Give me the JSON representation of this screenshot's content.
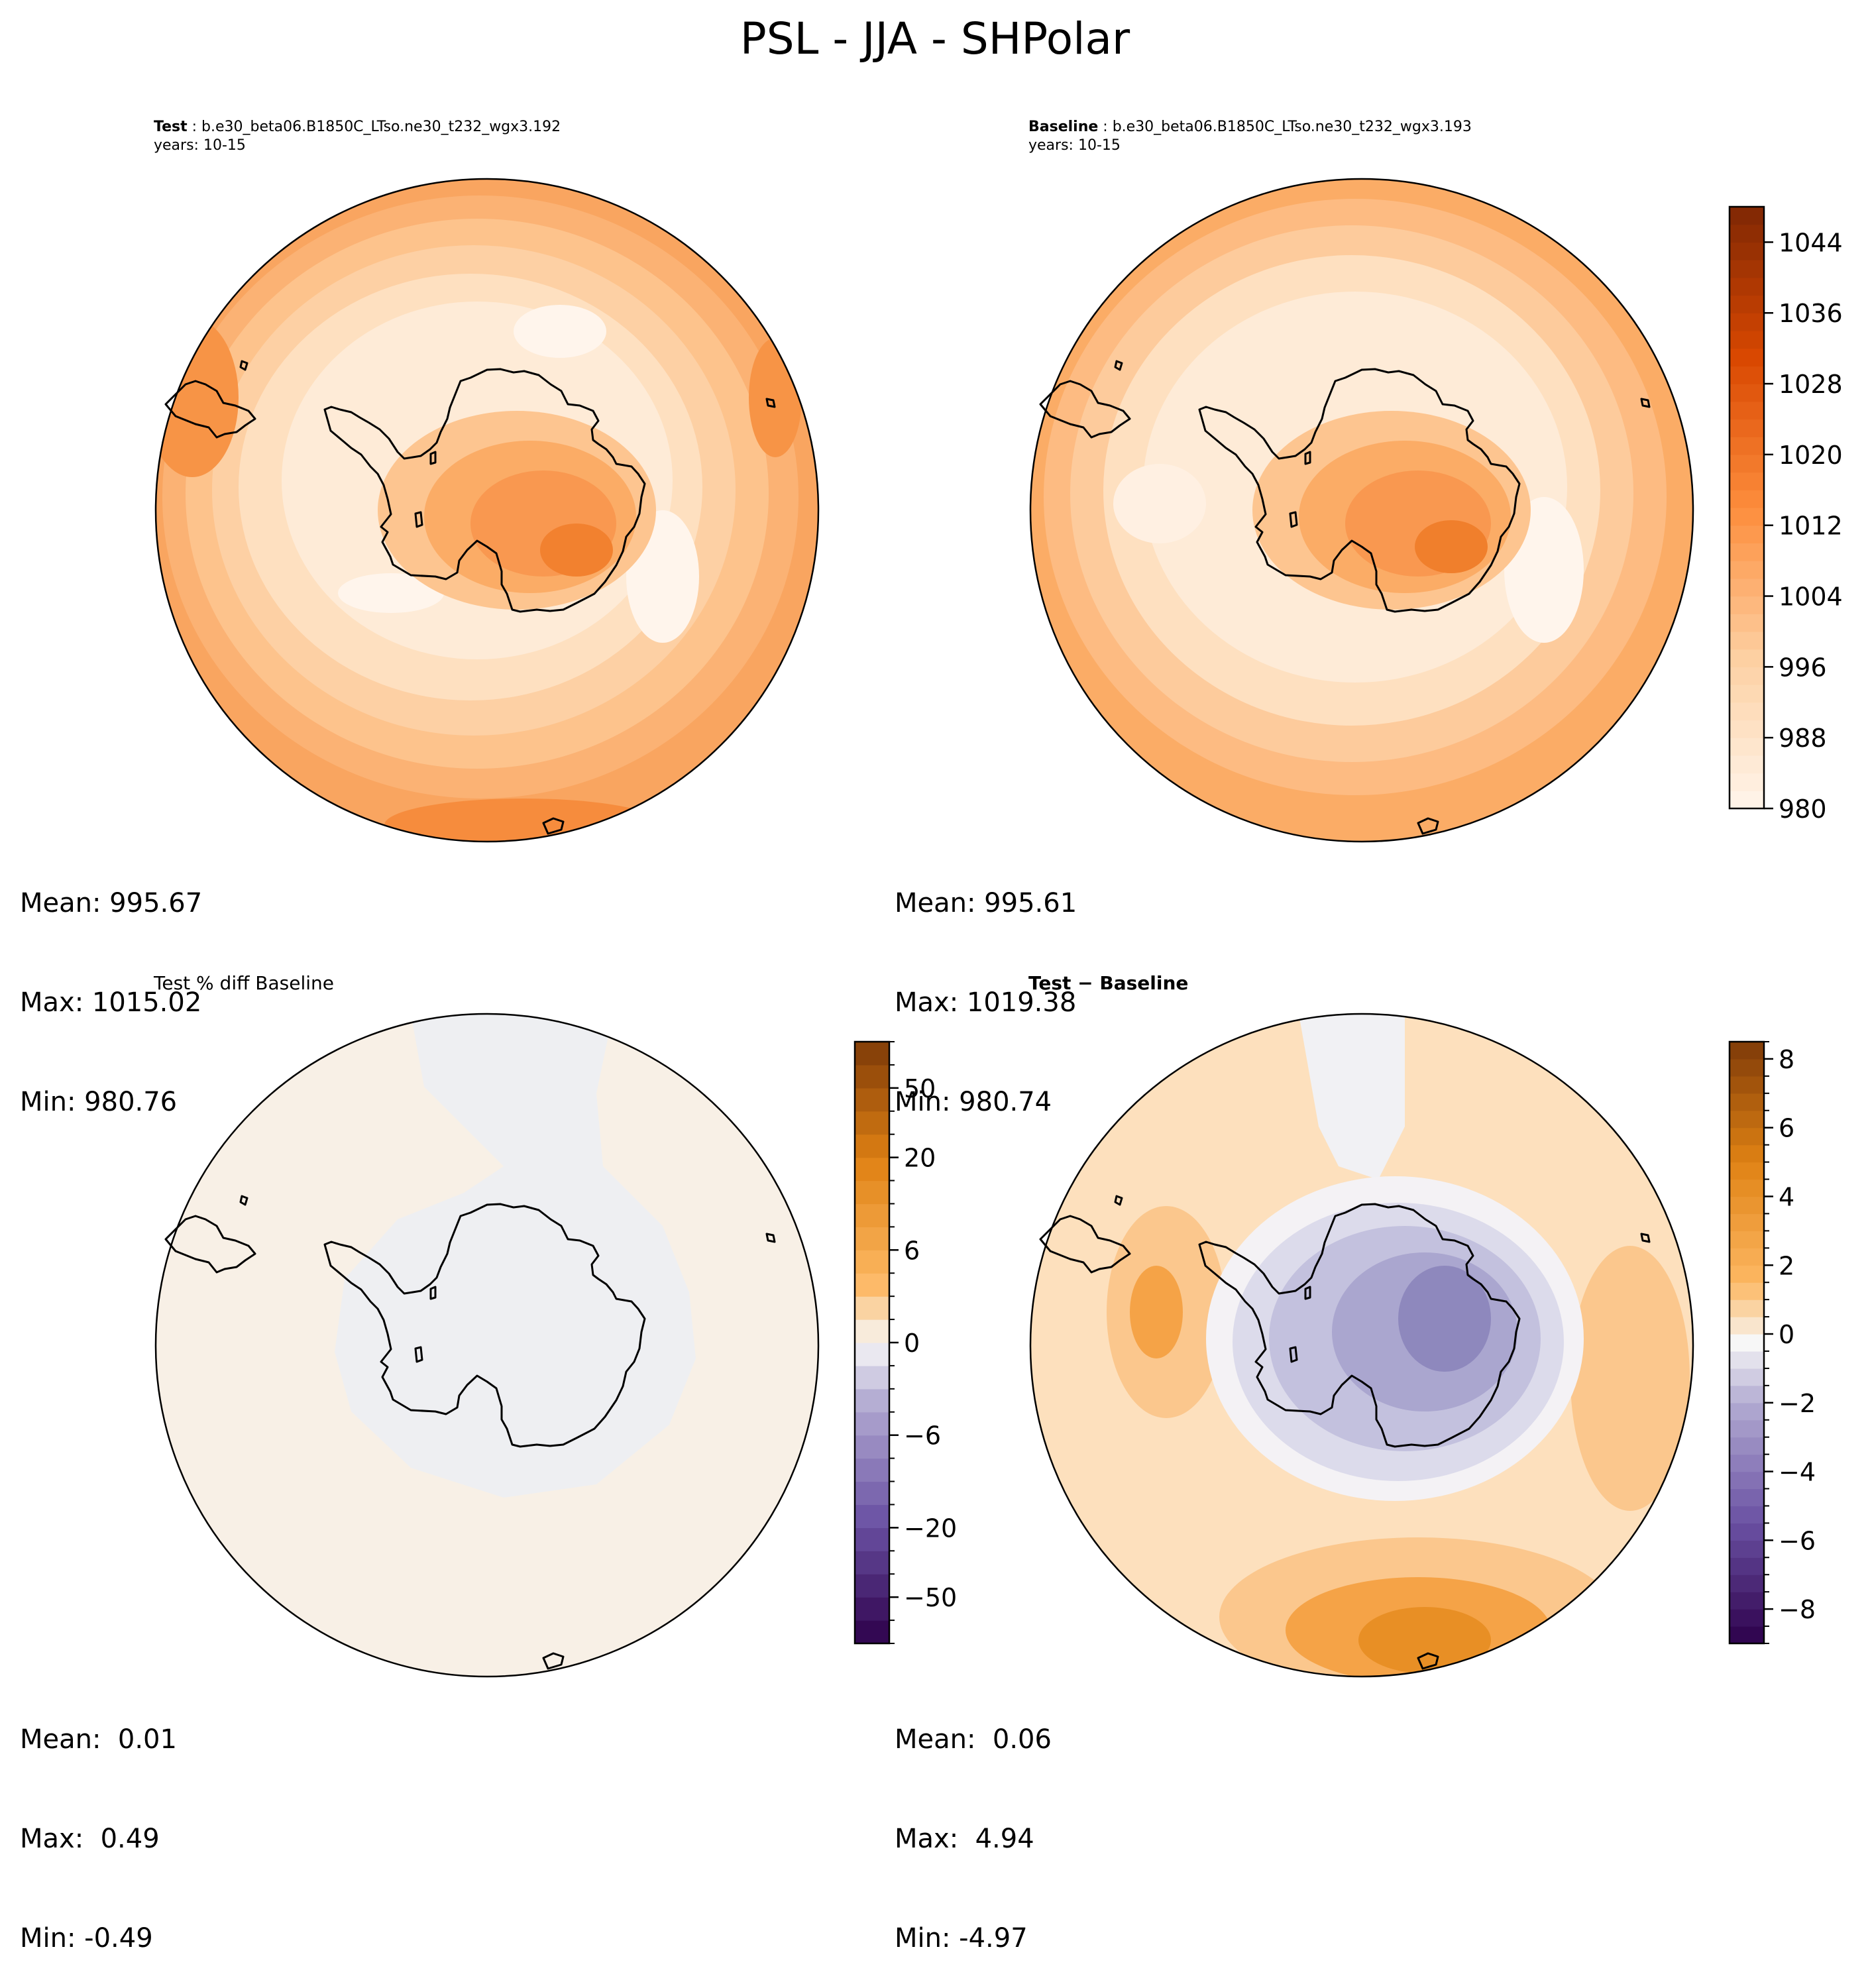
{
  "figure_title": "PSL - JJA - SHPolar",
  "panels": {
    "test": {
      "label": "Test",
      "case": " : b.e30_beta06.B1850C_LTso.ne30_t232_wgx3.192",
      "years": "years: 10-15",
      "mean": "Mean: 995.67",
      "max": "Max: 1015.02",
      "min": "Min: 980.76"
    },
    "baseline": {
      "label": "Baseline",
      "case": " : b.e30_beta06.B1850C_LTso.ne30_t232_wgx3.193",
      "years": "years: 10-15",
      "mean": "Mean: 995.61",
      "max": "Max: 1019.38",
      "min": "Min: 980.74"
    },
    "pctdiff": {
      "title": "Test % diff Baseline",
      "mean": "Mean:  0.01",
      "max": "Max:  0.49",
      "min": "Min: -0.49"
    },
    "diff": {
      "title": "Test − Baseline",
      "mean": "Mean:  0.06",
      "max": "Max:  4.94",
      "min": "Min: -4.97"
    }
  },
  "chart_data": [
    {
      "type": "heatmap",
      "name": "Test",
      "variable": "PSL",
      "projection": "South Polar Stereographic",
      "stats": {
        "mean": 995.67,
        "max": 1015.02,
        "min": 980.76
      },
      "colormap": "Oranges"
    },
    {
      "type": "heatmap",
      "name": "Baseline",
      "variable": "PSL",
      "projection": "South Polar Stereographic",
      "stats": {
        "mean": 995.61,
        "max": 1019.38,
        "min": 980.74
      },
      "colormap": "Oranges",
      "colorbar": {
        "range": [
          980,
          1048
        ],
        "ticks": [
          980,
          988,
          996,
          1004,
          1012,
          1020,
          1028,
          1036,
          1044
        ],
        "tick_labels": [
          "980",
          "988",
          "996",
          "1004",
          "1012",
          "1020",
          "1028",
          "1036",
          "1044"
        ]
      }
    },
    {
      "type": "heatmap",
      "name": "Test % diff Baseline",
      "stats": {
        "mean": 0.01,
        "max": 0.49,
        "min": -0.49
      },
      "colormap": "PuOr_r",
      "colorbar": {
        "levels": [
          -100,
          -75,
          -50,
          -40,
          -30,
          -20,
          -15,
          -10,
          -8,
          -6,
          -4,
          -2,
          -1,
          0,
          1,
          2,
          4,
          6,
          8,
          10,
          15,
          20,
          30,
          40,
          50,
          75,
          100
        ],
        "tick_labels": [
          "−50",
          "−20",
          "−6",
          "0",
          "6",
          "20",
          "50"
        ]
      }
    },
    {
      "type": "heatmap",
      "name": "Test − Baseline",
      "stats": {
        "mean": 0.06,
        "max": 4.94,
        "min": -4.97
      },
      "colormap": "PuOr_r",
      "colorbar": {
        "range": [
          -9,
          8.5
        ],
        "ticks": [
          -8,
          -6,
          -4,
          -2,
          0,
          2,
          4,
          6,
          8
        ],
        "tick_labels": [
          "−8",
          "−6",
          "−4",
          "−2",
          "0",
          "2",
          "4",
          "6",
          "8"
        ]
      }
    }
  ]
}
